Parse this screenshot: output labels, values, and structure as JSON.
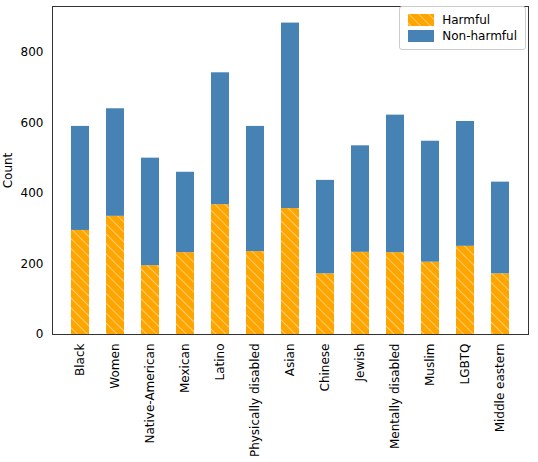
{
  "chart_data": {
    "type": "bar",
    "stacked": true,
    "ylabel": "Count",
    "categories": [
      "Black",
      "Women",
      "Native-American",
      "Mexican",
      "Latino",
      "Physically disabled",
      "Asian",
      "Chinese",
      "Jewish",
      "Mentally disabled",
      "Muslim",
      "LGBTQ",
      "Middle eastern"
    ],
    "series": [
      {
        "name": "Harmful",
        "color": "#ffa500",
        "values": [
          295,
          335,
          195,
          232,
          368,
          235,
          357,
          172,
          233,
          232,
          205,
          250,
          172
        ]
      },
      {
        "name": "Non-harmful",
        "color": "#4682b4",
        "values": [
          295,
          305,
          305,
          228,
          374,
          355,
          526,
          265,
          302,
          390,
          343,
          354,
          260
        ]
      }
    ],
    "ylim": [
      0,
      930
    ],
    "yticks": [
      0,
      200,
      400,
      600,
      800
    ],
    "legend": "upper right"
  }
}
